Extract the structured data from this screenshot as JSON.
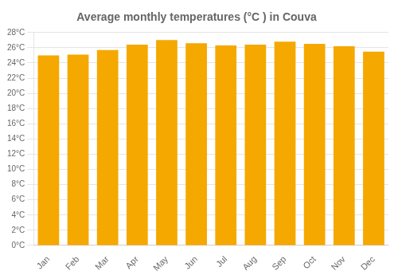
{
  "chart_data": {
    "type": "bar",
    "title": "Average monthly temperatures (°C ) in Couva",
    "categories": [
      "Jan",
      "Feb",
      "Mar",
      "Apr",
      "May",
      "Jun",
      "Jul",
      "Aug",
      "Sep",
      "Oct",
      "Nov",
      "Dec"
    ],
    "values": [
      25.0,
      25.1,
      25.7,
      26.4,
      27.0,
      26.6,
      26.3,
      26.4,
      26.8,
      26.5,
      26.2,
      25.5
    ],
    "color": "#F5A800",
    "ylim": [
      0,
      28
    ],
    "yticks": [
      {
        "value": 0,
        "label": "0°C"
      },
      {
        "value": 2,
        "label": "2°C"
      },
      {
        "value": 4,
        "label": "4°C"
      },
      {
        "value": 6,
        "label": "6°C"
      },
      {
        "value": 8,
        "label": "8°C"
      },
      {
        "value": 10,
        "label": "10°C"
      },
      {
        "value": 12,
        "label": "12°C"
      },
      {
        "value": 14,
        "label": "14°C"
      },
      {
        "value": 16,
        "label": "16°C"
      },
      {
        "value": 18,
        "label": "18°C"
      },
      {
        "value": 20,
        "label": "20°C"
      },
      {
        "value": 22,
        "label": "22°C"
      },
      {
        "value": 24,
        "label": "24°C"
      },
      {
        "value": 26,
        "label": "26°C"
      },
      {
        "value": 28,
        "label": "28°C"
      }
    ],
    "grid": true
  }
}
